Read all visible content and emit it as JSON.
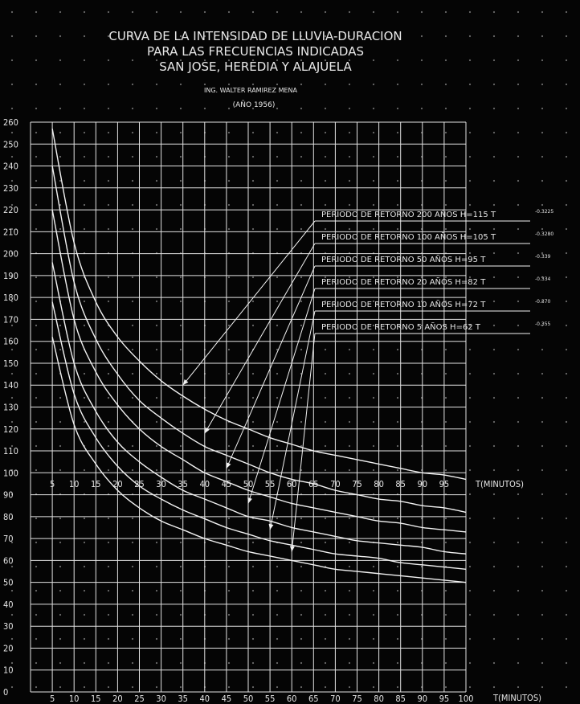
{
  "header": {
    "title_line1": "CURVA DE LA INTENSIDAD DE LLUVIA-DURACION",
    "title_line2": "PARA LAS FRECUENCIAS INDICADAS",
    "title_line3": "SAN JOSE, HEREDIA Y ALAJUELA",
    "author": "ING. WALTER RAMIREZ MENA",
    "year": "(AÑO 1956)"
  },
  "colors": {
    "background": "#050505",
    "grid": "#e2e2e2",
    "curve": "#f2f2f2",
    "text": "#e6e6e6",
    "dots": "#6a6a6a"
  },
  "chart_data": {
    "type": "line",
    "title": "CURVA DE LA INTENSIDAD DE LLUVIA-DURACION PARA LAS FRECUENCIAS INDICADAS SAN JOSE, HEREDIA Y ALAJUELA",
    "xlabel": "T(MINUTOS)",
    "ylabel": "",
    "inner_xlabel": "T(MINUTOS)",
    "xlim": [
      0,
      100
    ],
    "ylim": [
      0,
      260
    ],
    "grid": true,
    "x_ticks": [
      "5",
      "10",
      "15",
      "20",
      "25",
      "30",
      "35",
      "40",
      "45",
      "50",
      "55",
      "60",
      "65",
      "70",
      "75",
      "80",
      "85",
      "90",
      "95",
      "100"
    ],
    "inner_x_ticks": [
      "5",
      "10",
      "15",
      "20",
      "25",
      "30",
      "35",
      "40",
      "45",
      "50",
      "55",
      "60",
      "65",
      "70",
      "75",
      "80",
      "85",
      "90",
      "95"
    ],
    "y_ticks": [
      "0",
      "10",
      "20",
      "30",
      "40",
      "50",
      "60",
      "70",
      "80",
      "90",
      "100",
      "110",
      "120",
      "130",
      "140",
      "150",
      "160",
      "170",
      "180",
      "190",
      "200",
      "210",
      "220",
      "230",
      "240",
      "250",
      "260"
    ],
    "x": [
      5,
      10,
      15,
      20,
      25,
      30,
      35,
      40,
      45,
      50,
      55,
      60,
      65,
      70,
      75,
      80,
      85,
      90,
      95,
      100
    ],
    "series": [
      {
        "values": [
          257,
          205,
          178,
          162,
          151,
          142,
          135,
          129,
          124,
          120,
          116,
          113,
          110,
          108,
          106,
          104,
          102,
          100,
          99,
          97
        ]
      },
      {
        "values": [
          240,
          187,
          161,
          145,
          133,
          125,
          118,
          112,
          108,
          104,
          100,
          97,
          95,
          92,
          90,
          88,
          87,
          85,
          84,
          82
        ]
      },
      {
        "values": [
          220,
          170,
          146,
          131,
          120,
          112,
          106,
          100,
          96,
          92,
          89,
          86,
          84,
          82,
          80,
          78,
          77,
          75,
          74,
          73
        ]
      },
      {
        "values": [
          196,
          150,
          128,
          114,
          105,
          98,
          92,
          88,
          84,
          80,
          78,
          75,
          73,
          71,
          69,
          68,
          67,
          66,
          64,
          63
        ]
      },
      {
        "values": [
          178,
          136,
          116,
          103,
          94,
          88,
          83,
          79,
          75,
          72,
          69,
          67,
          65,
          63,
          62,
          61,
          59,
          58,
          57,
          56
        ]
      },
      {
        "values": [
          162,
          122,
          104,
          92,
          84,
          78,
          74,
          70,
          67,
          64,
          62,
          60,
          58,
          56,
          55,
          54,
          53,
          52,
          51,
          50
        ]
      }
    ],
    "legend": [
      {
        "text": "PERIODO DE RETORNO 200 AÑOS H=115 T",
        "exponent": "-0.3225",
        "target_x": 35,
        "target_y": 140
      },
      {
        "text": "PERIODO DE RETORNO 100 AÑOS H=105 T",
        "exponent": "-0.3280",
        "target_x": 40,
        "target_y": 118
      },
      {
        "text": "PERIODO DE RETORNO 50 AÑOS H=95 T",
        "exponent": "-0.339",
        "target_x": 45,
        "target_y": 102
      },
      {
        "text": "PERIODO DE RETORNO 20 AÑOS H=82 T",
        "exponent": "-0.334",
        "target_x": 50,
        "target_y": 86
      },
      {
        "text": "PERIODO DE RETORNO 10 AÑOS H=72 T",
        "exponent": "-0.370",
        "target_x": 55,
        "target_y": 74
      },
      {
        "text": "PERIODO DE RETORNO 5 AÑOS H=62 T",
        "exponent": "-0.355",
        "target_x": 60,
        "target_y": 64
      }
    ]
  }
}
